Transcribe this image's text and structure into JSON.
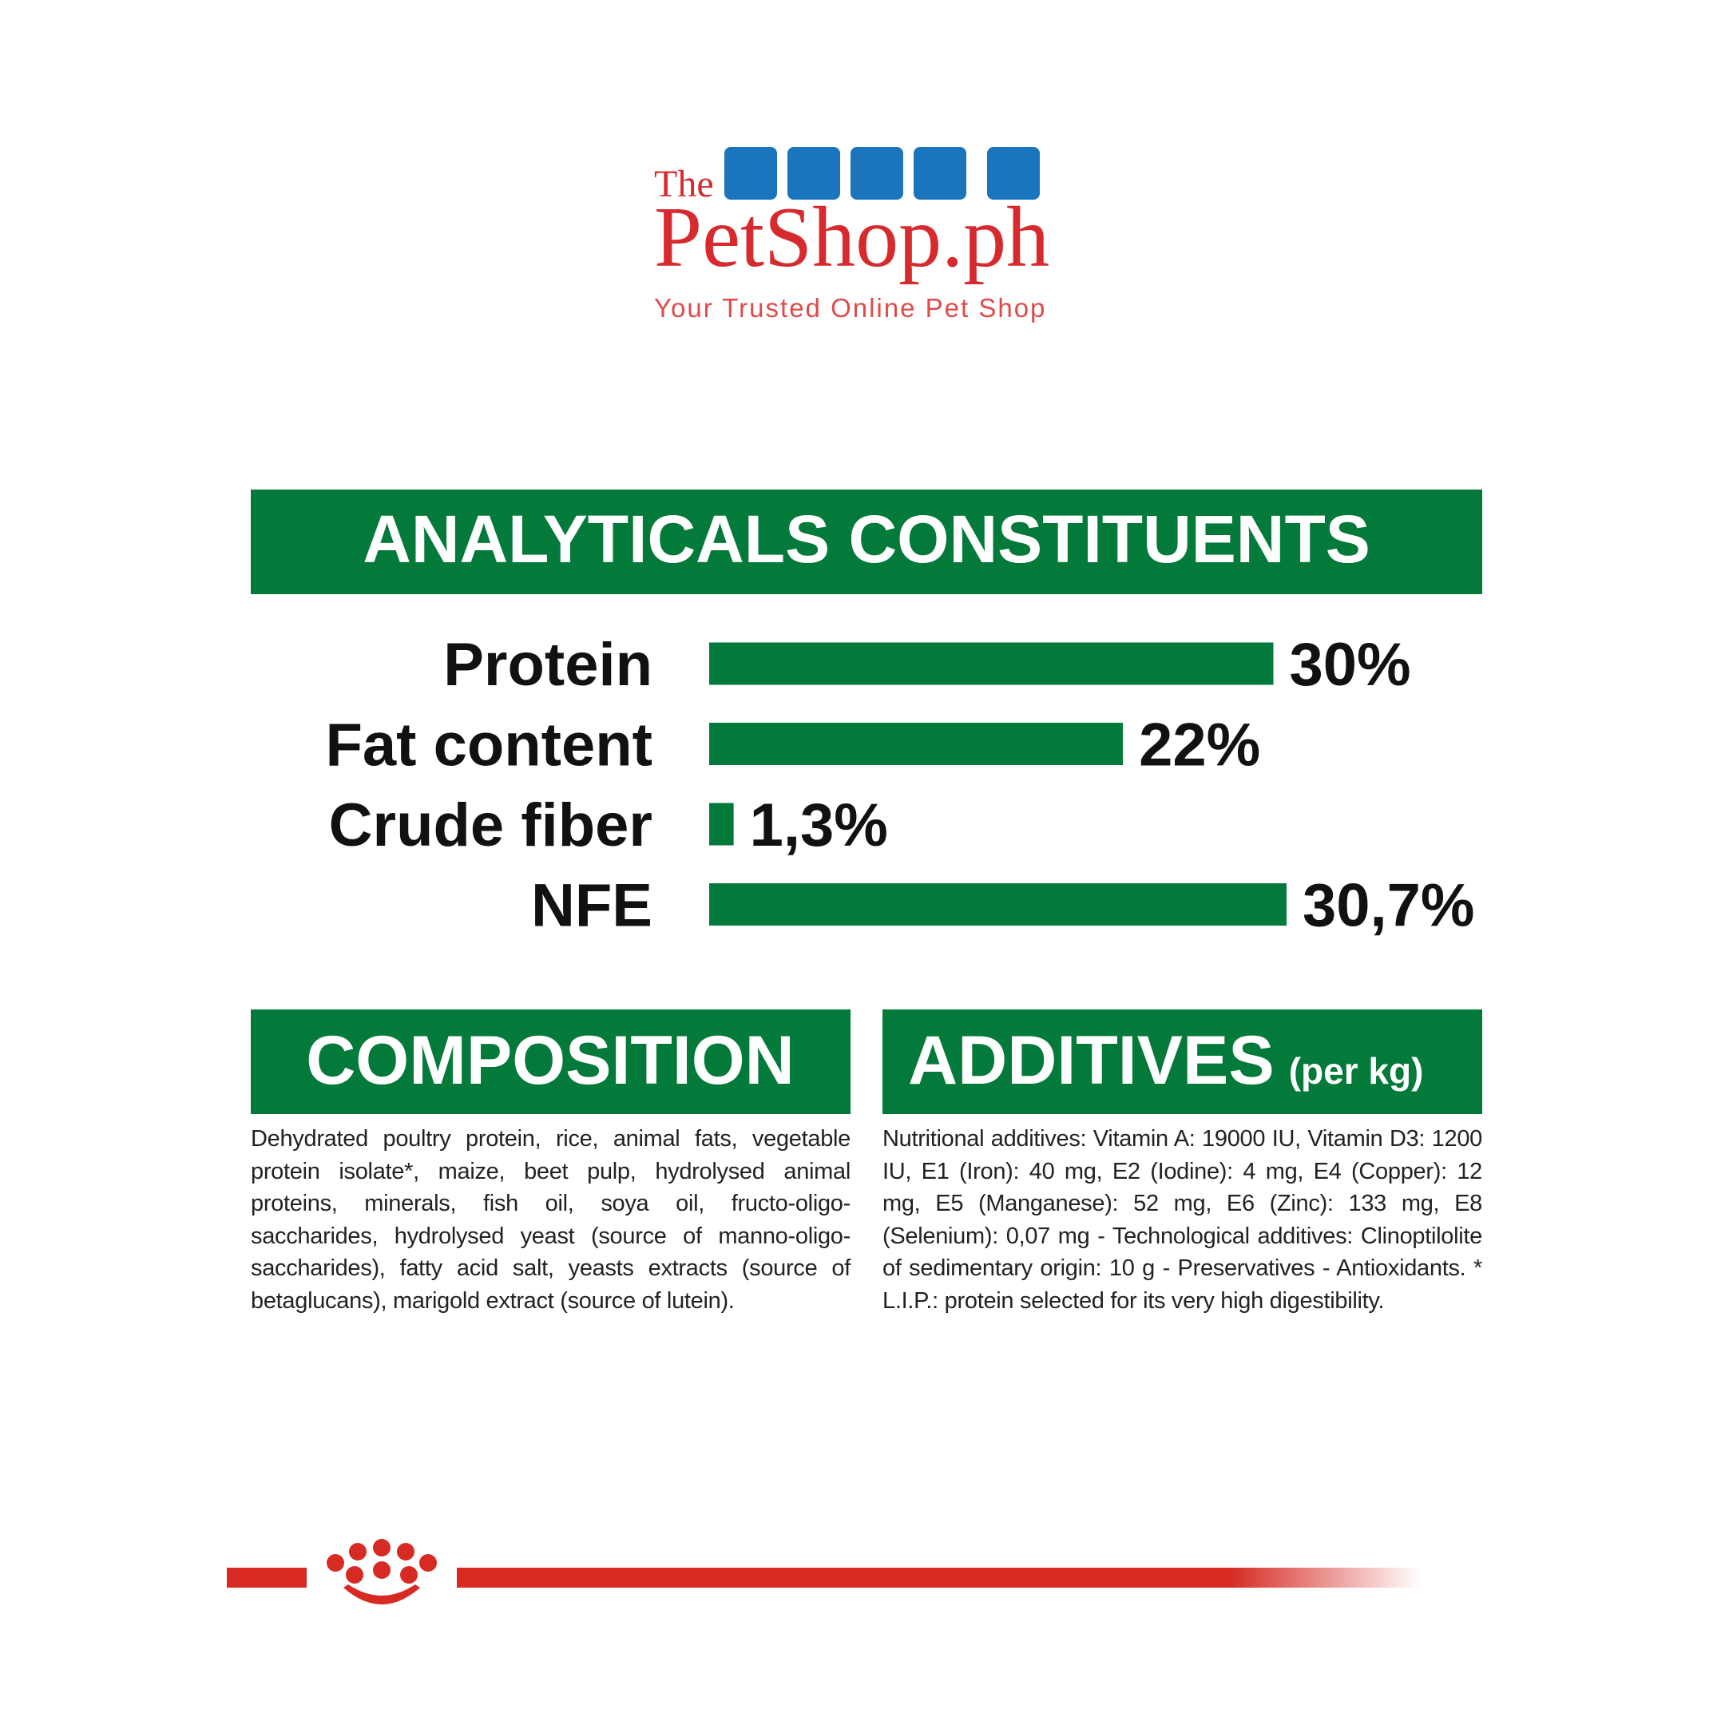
{
  "header": {
    "the": "The",
    "brand": "PetShop.ph",
    "tagline": "Your Trusted Online Pet Shop"
  },
  "chart_data": {
    "type": "bar",
    "orientation": "horizontal",
    "title": "ANALYTICALS CONSTITUENTS",
    "categories": [
      "Protein",
      "Fat content",
      "Crude fiber",
      "NFE"
    ],
    "values": [
      30,
      22,
      1.3,
      30.7
    ],
    "value_labels": [
      "30%",
      "22%",
      "1,3%",
      "30,7%"
    ],
    "color": "#047a3a"
  },
  "composition": {
    "title": "COMPOSITION",
    "text": "Dehydrated poultry protein, rice, animal fats, vegetable protein isolate*, maize, beet pulp, hydrolysed animal proteins, minerals, fish oil, soya oil, fructo-oligo-saccharides, hydrolysed yeast (source of manno-oligo-saccharides), fatty acid salt, yeasts extracts (source of betaglucans), marigold extract (source of lutein)."
  },
  "additives": {
    "title": "ADDITIVES",
    "unit": "(per kg)",
    "text": "Nutritional additives: Vitamin A: 19000 IU, Vitamin D3: 1200 IU, E1 (Iron): 40 mg, E2 (Iodine): 4 mg, E4 (Copper): 12 mg, E5 (Manganese): 52 mg, E6 (Zinc): 133 mg, E8 (Selenium): 0,07 mg - Technological additives: Clinoptilolite of sedimentary origin: 10 g - Preservatives - Antioxidants. * L.I.P.: protein selected for its very high digestibility."
  }
}
